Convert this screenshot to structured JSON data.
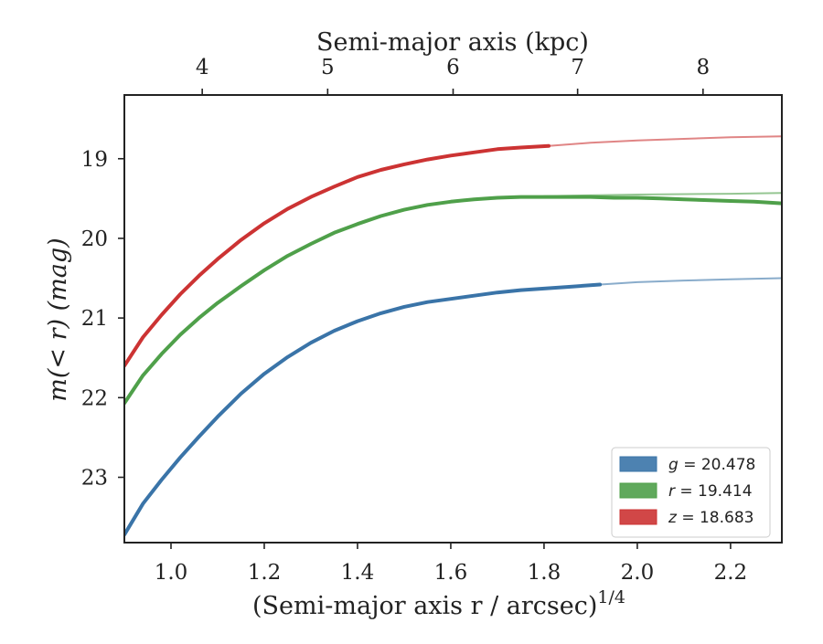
{
  "chart_data": {
    "type": "line",
    "xlabel": "(Semi-major axis r / arcsec)",
    "xlabel_superscript": "1/4",
    "ylabel": "m(< r) (mag)",
    "top_xlabel": "Semi-major axis (kpc)",
    "xlim": [
      0.9,
      2.31
    ],
    "ylim": [
      23.82,
      18.2
    ],
    "y_inverted": true,
    "x_ticks": [
      1.0,
      1.2,
      1.4,
      1.6,
      1.8,
      2.0,
      2.2
    ],
    "x_tick_labels": [
      "1.0",
      "1.2",
      "1.4",
      "1.6",
      "1.8",
      "2.0",
      "2.2"
    ],
    "y_ticks": [
      19,
      20,
      21,
      22,
      23
    ],
    "y_tick_labels": [
      "19",
      "20",
      "21",
      "22",
      "23"
    ],
    "top_ticks": [
      4,
      5,
      6,
      7,
      8
    ],
    "top_tick_labels": [
      "4",
      "5",
      "6",
      "7",
      "8"
    ],
    "top_tick_positions_x": [
      1.067,
      1.336,
      1.605,
      1.872,
      2.141
    ],
    "grid": false,
    "legend_position": "lower-right",
    "series": [
      {
        "name": "g = 20.478",
        "legend_var": "g",
        "legend_value": "20.478",
        "color": "#3a74a8",
        "measured": {
          "x": [
            0.9,
            0.94,
            0.98,
            1.02,
            1.06,
            1.1,
            1.15,
            1.2,
            1.25,
            1.3,
            1.35,
            1.4,
            1.45,
            1.5,
            1.55,
            1.6,
            1.65,
            1.7,
            1.75,
            1.8,
            1.85,
            1.92
          ],
          "y": [
            23.72,
            23.33,
            23.03,
            22.75,
            22.49,
            22.24,
            21.95,
            21.7,
            21.49,
            21.31,
            21.16,
            21.04,
            20.94,
            20.86,
            20.8,
            20.76,
            20.72,
            20.68,
            20.65,
            20.63,
            20.61,
            20.58
          ]
        },
        "extrapolated": {
          "x": [
            1.92,
            2.0,
            2.1,
            2.2,
            2.31
          ],
          "y": [
            20.58,
            20.55,
            20.53,
            20.515,
            20.5
          ]
        }
      },
      {
        "name": "r = 19.414",
        "legend_var": "r",
        "legend_value": "19.414",
        "color": "#4fa04a",
        "measured": {
          "x": [
            0.9,
            0.94,
            0.98,
            1.02,
            1.06,
            1.1,
            1.15,
            1.2,
            1.25,
            1.3,
            1.35,
            1.4,
            1.45,
            1.5,
            1.55,
            1.6,
            1.65,
            1.7,
            1.75,
            1.8,
            1.85,
            1.9,
            1.95,
            2.0,
            2.05,
            2.1,
            2.15,
            2.2,
            2.25,
            2.31
          ],
          "y": [
            22.07,
            21.72,
            21.45,
            21.21,
            21.0,
            20.81,
            20.6,
            20.4,
            20.22,
            20.07,
            19.93,
            19.82,
            19.72,
            19.64,
            19.58,
            19.54,
            19.51,
            19.49,
            19.48,
            19.48,
            19.48,
            19.48,
            19.49,
            19.49,
            19.5,
            19.51,
            19.52,
            19.53,
            19.54,
            19.56
          ]
        },
        "extrapolated": {
          "x": [
            1.8,
            2.0,
            2.2,
            2.31
          ],
          "y": [
            19.47,
            19.45,
            19.44,
            19.43
          ]
        }
      },
      {
        "name": "z = 18.683",
        "legend_var": "z",
        "legend_value": "18.683",
        "color": "#cc3333",
        "measured": {
          "x": [
            0.9,
            0.94,
            0.98,
            1.02,
            1.06,
            1.1,
            1.15,
            1.2,
            1.25,
            1.3,
            1.35,
            1.4,
            1.45,
            1.5,
            1.55,
            1.6,
            1.65,
            1.7,
            1.75,
            1.81
          ],
          "y": [
            21.6,
            21.24,
            20.96,
            20.7,
            20.47,
            20.26,
            20.02,
            19.81,
            19.63,
            19.48,
            19.35,
            19.23,
            19.14,
            19.07,
            19.01,
            18.96,
            18.92,
            18.88,
            18.86,
            18.84
          ]
        },
        "extrapolated": {
          "x": [
            1.81,
            1.9,
            2.0,
            2.1,
            2.2,
            2.31
          ],
          "y": [
            18.84,
            18.8,
            18.77,
            18.75,
            18.73,
            18.72
          ]
        }
      }
    ]
  }
}
